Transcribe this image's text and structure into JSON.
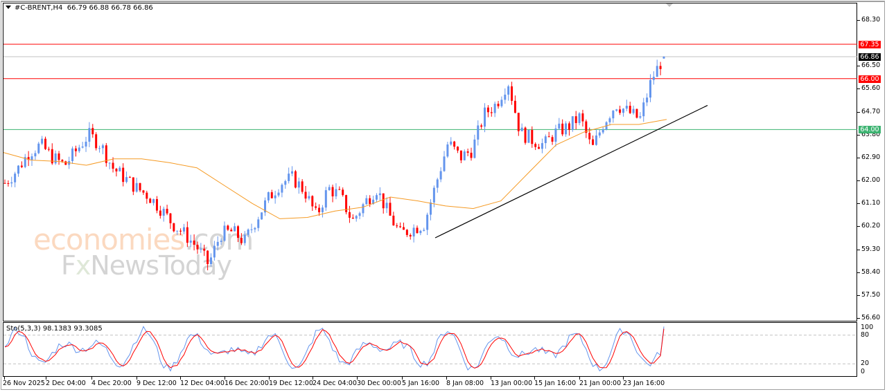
{
  "header": {
    "symbol": "#C-BRENT,H4",
    "ohlc": "66.79 66.88 66.78 66.86"
  },
  "watermark": {
    "line1_main": "economies",
    "line1_suffix": ".com",
    "line2_prefix": "F",
    "line2_x": "x",
    "line2_main": "NewsToday"
  },
  "price_axis": {
    "ticks": [
      "68.30",
      "66.50",
      "65.60",
      "64.70",
      "63.80",
      "62.90",
      "62.00",
      "61.10",
      "60.20",
      "59.30",
      "58.40",
      "57.50",
      "56.60"
    ],
    "tags": [
      {
        "label": "67.35",
        "color": "#ff0000"
      },
      {
        "label": "66.86",
        "color": "#000000"
      },
      {
        "label": "66.00",
        "color": "#ff0000"
      },
      {
        "label": "64.00",
        "color": "#3cb371"
      }
    ]
  },
  "stochastic": {
    "title": "Sto(5,3,3) 98.1383 93.3085",
    "levels": [
      "100",
      "80",
      "20",
      "0"
    ]
  },
  "time_axis": {
    "labels": [
      "26 Nov 2025",
      "2 Dec 04:00",
      "4 Dec 20:00",
      "9 Dec 12:00",
      "12 Dec 04:00",
      "16 Dec 20:00",
      "19 Dec 12:00",
      "24 Dec 04:00",
      "30 Dec 00:00",
      "5 Jan 16:00",
      "8 Jan 08:00",
      "13 Jan 00:00",
      "15 Jan 16:00",
      "21 Jan 00:00",
      "23 Jan 16:00"
    ]
  },
  "colors": {
    "bull": "#6495ed",
    "bear": "#ff0000",
    "ma": "#f59a23",
    "resistance": "#ff0000",
    "support": "#3cb371",
    "trendline": "#000000",
    "stoch_main": "#6495ed",
    "stoch_signal": "#ff0000"
  },
  "chart_data": {
    "type": "candlestick",
    "title": "#C-BRENT,H4",
    "instrument": "#C-BRENT",
    "timeframe": "H4",
    "last_bar": {
      "open": 66.79,
      "high": 66.88,
      "low": 66.78,
      "close": 66.86
    },
    "ylim": [
      56.6,
      68.3
    ],
    "y_ticks": [
      68.3,
      67.4,
      66.5,
      65.6,
      64.7,
      63.8,
      62.9,
      62.0,
      61.1,
      60.2,
      59.3,
      58.4,
      57.5,
      56.6
    ],
    "x_ticks": [
      "26 Nov 2025",
      "2 Dec 04:00",
      "4 Dec 20:00",
      "9 Dec 12:00",
      "12 Dec 04:00",
      "16 Dec 20:00",
      "19 Dec 12:00",
      "24 Dec 04:00",
      "30 Dec 00:00",
      "5 Jan 16:00",
      "8 Jan 08:00",
      "13 Jan 00:00",
      "15 Jan 16:00",
      "21 Jan 00:00",
      "23 Jan 16:00"
    ],
    "horizontal_lines": [
      {
        "price": 67.35,
        "color": "#ff0000",
        "role": "resistance"
      },
      {
        "price": 66.86,
        "color": "#c0c0c0",
        "role": "current price"
      },
      {
        "price": 66.0,
        "color": "#ff0000",
        "role": "resistance"
      },
      {
        "price": 64.0,
        "color": "#3cb371",
        "role": "support"
      }
    ],
    "trendline": {
      "from": {
        "date": "5 Jan 16:00",
        "price": 59.75
      },
      "to": {
        "date": "after 23 Jan 16:00",
        "price": 64.95
      },
      "color": "#000000"
    },
    "moving_average": {
      "color": "#f59a23",
      "approx_points": [
        63.1,
        62.8,
        62.75,
        62.6,
        62.85,
        62.85,
        62.7,
        62.5,
        61.8,
        61.1,
        60.5,
        60.55,
        60.8,
        60.95,
        61.35,
        61.2,
        61.0,
        60.9,
        61.2,
        62.3,
        63.4,
        63.9,
        64.2,
        64.2,
        64.4
      ]
    },
    "closes_approx": [
      61.9,
      62.4,
      63.1,
      63.4,
      62.9,
      62.6,
      63.2,
      63.8,
      63.4,
      62.5,
      62.1,
      61.7,
      61.4,
      60.9,
      60.3,
      59.9,
      59.4,
      58.7,
      59.9,
      60.0,
      59.6,
      60.5,
      61.3,
      61.9,
      62.1,
      61.6,
      60.6,
      61.7,
      61.4,
      60.4,
      61.1,
      61.7,
      60.7,
      59.9,
      60.1,
      60.3,
      61.9,
      63.5,
      62.9,
      63.2,
      64.6,
      65.0,
      65.9,
      63.9,
      63.6,
      63.4,
      63.9,
      64.1,
      64.5,
      63.2,
      64.3,
      65.0,
      64.7,
      64.4,
      66.0,
      66.86
    ],
    "sub_chart": {
      "name": "Sto(5,3,3)",
      "main_value": 98.1383,
      "signal_value": 93.3085,
      "levels": [
        80,
        20
      ],
      "ylim": [
        0,
        100
      ]
    }
  }
}
